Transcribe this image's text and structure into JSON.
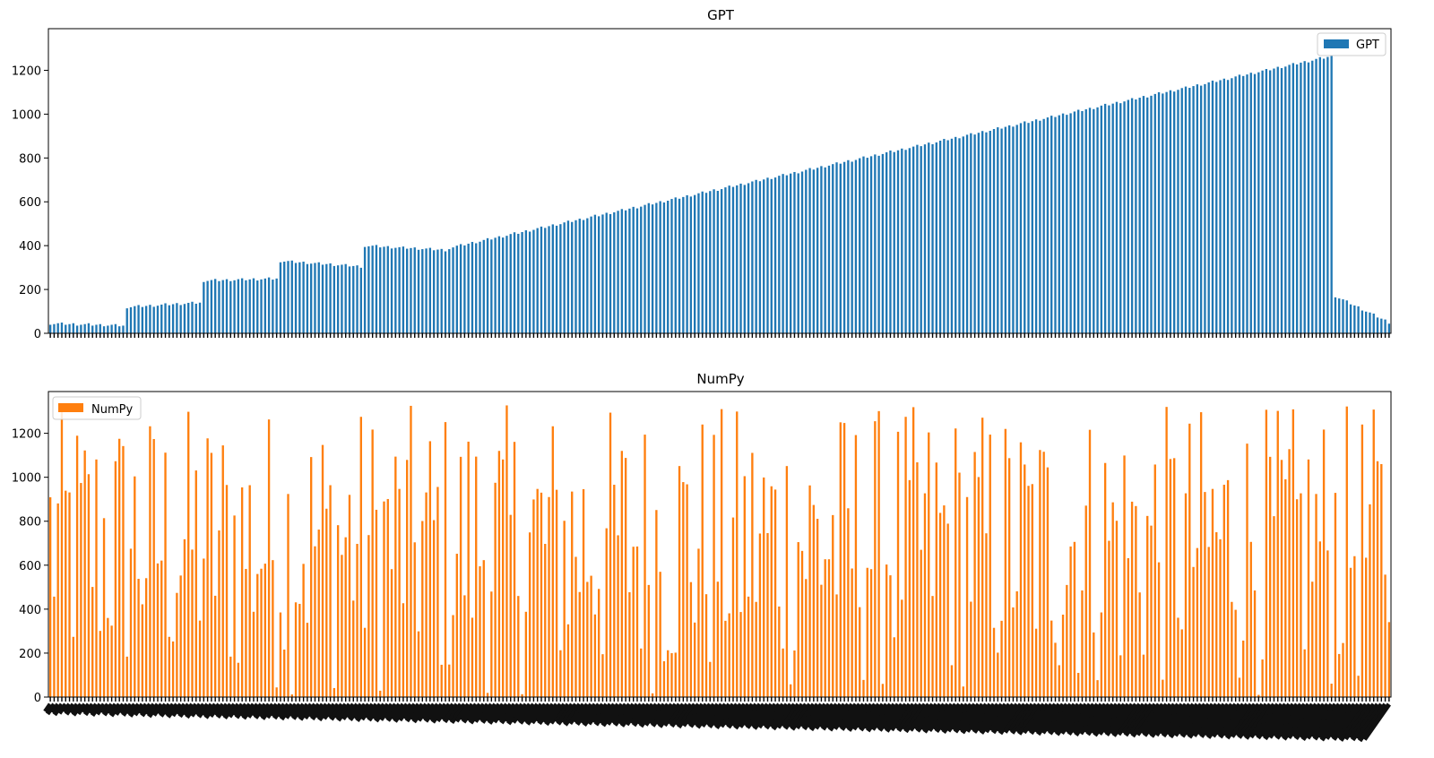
{
  "chart_data": [
    {
      "type": "bar",
      "title": "GPT",
      "legend": "top-right",
      "color": "#1f77b4",
      "series": [
        {
          "name": "GPT"
        }
      ],
      "ylim": [
        0,
        1390
      ],
      "yticks": [
        0,
        200,
        400,
        600,
        800,
        1000,
        1200
      ],
      "grid": false,
      "n_bars": 350,
      "segments": [
        {
          "start": 0,
          "count": 20,
          "from": 45,
          "to": 35
        },
        {
          "start": 20,
          "count": 20,
          "from": 120,
          "to": 140
        },
        {
          "start": 40,
          "count": 20,
          "from": 240,
          "to": 250
        },
        {
          "start": 60,
          "count": 22,
          "from": 330,
          "to": 305
        },
        {
          "start": 82,
          "count": 22,
          "from": 400,
          "to": 380
        },
        {
          "start": 104,
          "count": 231,
          "from": 390,
          "to": 1265
        },
        {
          "start": 335,
          "count": 15,
          "from": 170,
          "to": 50
        }
      ],
      "x_tick_labels_visible": false
    },
    {
      "type": "bar",
      "title": "NumPy",
      "legend": "top-left",
      "color": "#ff7f0e",
      "series": [
        {
          "name": "NumPy"
        }
      ],
      "ylim": [
        0,
        1390
      ],
      "yticks": [
        0,
        200,
        400,
        600,
        800,
        1000,
        1200
      ],
      "grid": false,
      "n_bars": 350,
      "value_range": [
        0,
        1330
      ],
      "distribution": "irregular spikes across full range",
      "x_tick_labels_visible": true
    }
  ]
}
